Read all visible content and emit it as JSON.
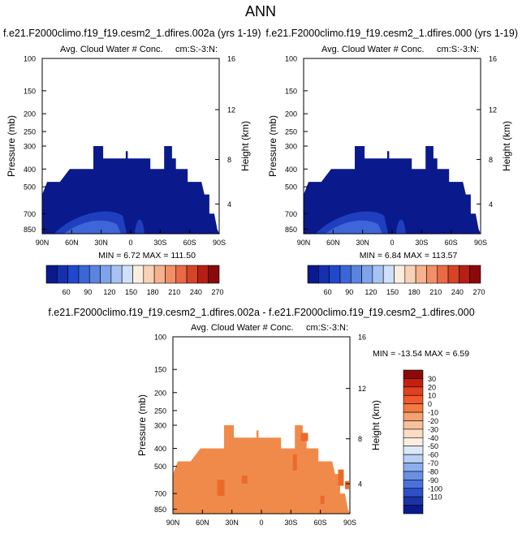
{
  "page_title": "ANN",
  "panels": [
    {
      "case": "f.e21.F2000climo.f19_f19.cesm2_1.dfires.002a (yrs 1-19)",
      "subtitle_left": "Avg. Cloud Water # Conc.",
      "subtitle_right": "cm:S:-3:N:",
      "ylabel": "Pressure (mb)",
      "ylabel_right": "Height (km)",
      "minmax": "MIN =   6.72   MAX = 111.50"
    },
    {
      "case": "f.e21.F2000climo.f19_f19.cesm2_1.dfires.000 (yrs 1-19)",
      "subtitle_left": "Avg. Cloud Water # Conc.",
      "subtitle_right": "cm:S:-3:N:",
      "ylabel": "Pressure (mb)",
      "ylabel_right": "Height (km)",
      "minmax": "MIN =   6.84   MAX = 113.57"
    },
    {
      "case": "f.e21.F2000climo.f19_f19.cesm2_1.dfires.002a - f.e21.F2000climo.f19_f19.cesm2_1.dfires.000",
      "subtitle_left": "Avg. Cloud Water # Conc.",
      "subtitle_right": "cm:S:-3:N:",
      "ylabel": "Pressure (mb)",
      "ylabel_right": "Height (km)",
      "minmax": "MIN = -13.54   MAX =   6.59"
    }
  ],
  "colors": {
    "field_dark": "#0a1a8c",
    "field_mid": "#1f3fbf",
    "field_light": "#3e66d8",
    "diff_fill": "#f08a4b",
    "diff_dark": "#ea6a2c"
  },
  "colorbar_abs": {
    "labels": [
      "60",
      "90",
      "120",
      "150",
      "180",
      "210",
      "240",
      "270"
    ],
    "colors": [
      "#0a1a8c",
      "#1430b0",
      "#1f48cc",
      "#3a66d8",
      "#5b84e0",
      "#7fa3ea",
      "#a6c3f3",
      "#cfe0f8",
      "#fbeee0",
      "#f9d2b6",
      "#f6b28e",
      "#f28f66",
      "#ea6a45",
      "#d64428",
      "#b81f14",
      "#8a0a0a"
    ]
  },
  "colorbar_diff": {
    "labels": [
      "30",
      "20",
      "10",
      "0",
      "-10",
      "-20",
      "-30",
      "-40",
      "-50",
      "-60",
      "-70",
      "-80",
      "-90",
      "-100",
      "-110"
    ],
    "colors": [
      "#8a0a0a",
      "#c4200e",
      "#e0401b",
      "#f2582a",
      "#f47a40",
      "#f7a070",
      "#f9c09c",
      "#fbdcc4",
      "#fbeede",
      "#dbe8f8",
      "#b6cff3",
      "#8caeec",
      "#6a90e4",
      "#4a72dc",
      "#2d50c8",
      "#1a34a8",
      "#0a1a8c"
    ]
  },
  "chart_data": [
    {
      "type": "heatmap",
      "title": "Avg. Cloud Water # Conc.",
      "xlabel": "",
      "ylabel": "Pressure (mb)",
      "xticks": [
        "90N",
        "60N",
        "30N",
        "0",
        "30S",
        "60S",
        "90S"
      ],
      "yticks": [
        "100",
        "150",
        "200",
        "250",
        "300",
        "400",
        "500",
        "700",
        "850"
      ],
      "yticks_right": [
        "16",
        "12",
        "8",
        "4"
      ],
      "xlim": [
        90,
        -90
      ],
      "ylim": [
        100,
        900
      ],
      "y_scale": "log",
      "cloud_top_mb": [
        [
          -90,
          550
        ],
        [
          -85,
          470
        ],
        [
          -72,
          470
        ],
        [
          -62,
          400
        ],
        [
          -38,
          400
        ],
        [
          -38,
          300
        ],
        [
          -28,
          300
        ],
        [
          -28,
          350
        ],
        [
          -20,
          350
        ],
        [
          -20,
          350
        ],
        [
          -5,
          350
        ],
        [
          -5,
          320
        ],
        [
          -3,
          320
        ],
        [
          -3,
          350
        ],
        [
          10,
          350
        ],
        [
          20,
          350
        ],
        [
          20,
          400
        ],
        [
          34,
          400
        ],
        [
          34,
          300
        ],
        [
          42,
          300
        ],
        [
          42,
          350
        ],
        [
          46,
          350
        ],
        [
          46,
          400
        ],
        [
          58,
          400
        ],
        [
          58,
          470
        ],
        [
          72,
          470
        ],
        [
          75,
          550
        ],
        [
          80,
          550
        ],
        [
          80,
          700
        ],
        [
          85,
          700
        ],
        [
          88,
          850
        ]
      ],
      "min": 6.72,
      "max": 111.5
    },
    {
      "type": "heatmap",
      "title": "Avg. Cloud Water # Conc.",
      "xlabel": "",
      "ylabel": "Pressure (mb)",
      "xticks": [
        "90N",
        "60N",
        "30N",
        "0",
        "30S",
        "60S",
        "90S"
      ],
      "yticks": [
        "100",
        "150",
        "200",
        "250",
        "300",
        "400",
        "500",
        "700",
        "850"
      ],
      "yticks_right": [
        "16",
        "12",
        "8",
        "4"
      ],
      "xlim": [
        90,
        -90
      ],
      "ylim": [
        100,
        900
      ],
      "y_scale": "log",
      "min": 6.84,
      "max": 113.57
    },
    {
      "type": "heatmap",
      "title": "Avg. Cloud Water # Conc.",
      "xlabel": "",
      "ylabel": "Pressure (mb)",
      "xticks": [
        "90N",
        "60N",
        "30N",
        "0",
        "30S",
        "60S",
        "90S"
      ],
      "yticks": [
        "100",
        "150",
        "200",
        "250",
        "300",
        "400",
        "500",
        "700",
        "850"
      ],
      "yticks_right": [
        "16",
        "12",
        "8",
        "4"
      ],
      "xlim": [
        90,
        -90
      ],
      "ylim": [
        100,
        900
      ],
      "y_scale": "log",
      "min": -13.54,
      "max": 6.59
    }
  ]
}
